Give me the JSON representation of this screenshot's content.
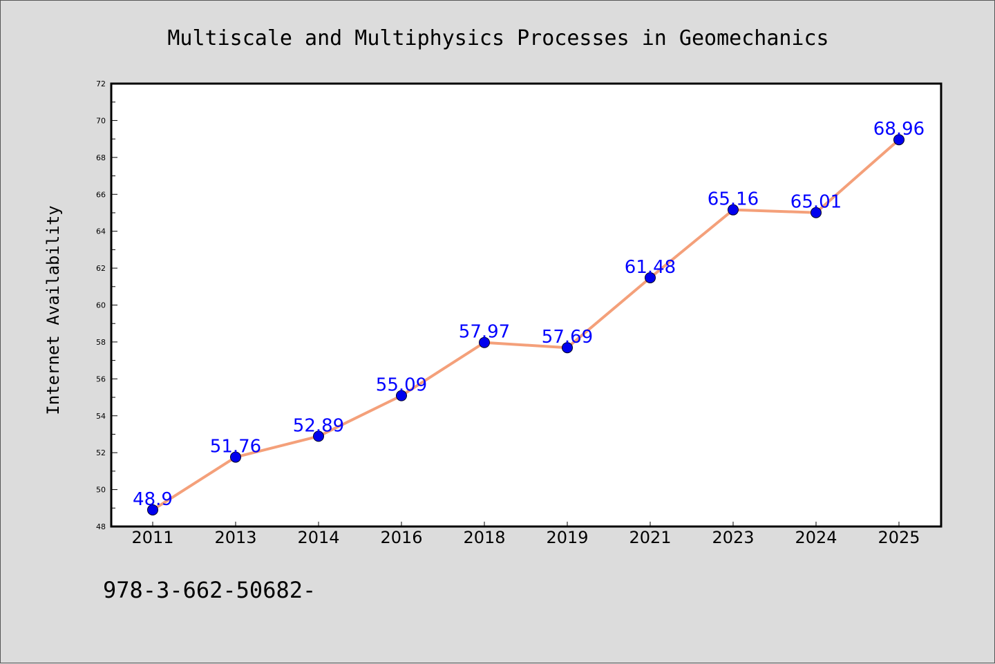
{
  "chart_data": {
    "type": "line",
    "title": "Multiscale and Multiphysics Processes in Geomechanics",
    "xlabel": "",
    "ylabel": "Internet Availability",
    "categories": [
      "2011",
      "2013",
      "2014",
      "2016",
      "2018",
      "2019",
      "2021",
      "2023",
      "2024",
      "2025"
    ],
    "values": [
      48.9,
      51.76,
      52.89,
      55.09,
      57.97,
      57.69,
      61.48,
      65.16,
      65.01,
      68.96
    ],
    "data_labels": [
      "48.9",
      "51.76",
      "52.89",
      "55.09",
      "57.97",
      "57.69",
      "61.48",
      "65.16",
      "65.01",
      "68.96"
    ],
    "ylim": [
      48,
      72
    ],
    "yticks": [
      48,
      50,
      52,
      54,
      56,
      58,
      60,
      62,
      64,
      66,
      68,
      70,
      72
    ],
    "grid": false,
    "line_color": "#f4a07a",
    "marker_color": "#0000ee",
    "label_color": "#0000ff"
  },
  "footer": {
    "text": "978-3-662-50682-"
  }
}
